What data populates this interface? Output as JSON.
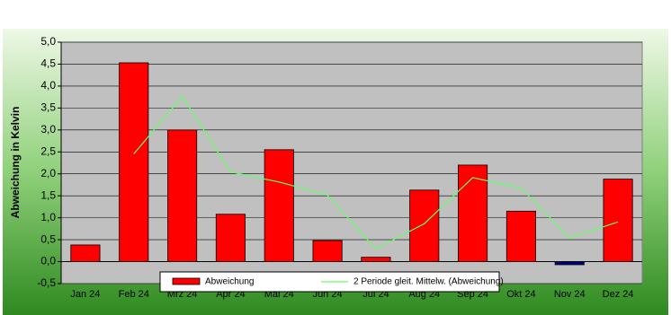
{
  "chart_data": {
    "type": "bar",
    "y_label": "Abweichung in Kelvin",
    "categories": [
      "Jan 24",
      "Feb 24",
      "Mrz 24",
      "Apr 24",
      "Mai 24",
      "Jun 24",
      "Jul 24",
      "Aug 24",
      "Sep 24",
      "Okt 24",
      "Nov 24",
      "Dez 24"
    ],
    "series": [
      {
        "name": "Abweichung",
        "type": "bar",
        "color": "#ff0000",
        "negative_color": "#000080",
        "values": [
          0.38,
          4.53,
          3.0,
          1.08,
          2.55,
          0.48,
          0.1,
          1.63,
          2.2,
          1.15,
          -0.07,
          1.88
        ]
      },
      {
        "name": "2 Periode gleit. Mittelw. (Abweichung)",
        "type": "line",
        "color": "#66ff66",
        "values": [
          null,
          2.455,
          3.765,
          2.04,
          1.815,
          1.515,
          0.29,
          0.865,
          1.915,
          1.675,
          0.54,
          0.905
        ]
      }
    ],
    "ylim": [
      -0.5,
      5.0
    ],
    "yticks": [
      {
        "value": -0.5,
        "label": "-0,5"
      },
      {
        "value": 0,
        "label": "0,0"
      },
      {
        "value": 0.5,
        "label": "0,5"
      },
      {
        "value": 1.0,
        "label": "1,0"
      },
      {
        "value": 1.5,
        "label": "1,5"
      },
      {
        "value": 2.0,
        "label": "2,0"
      },
      {
        "value": 2.5,
        "label": "2,5"
      },
      {
        "value": 3.0,
        "label": "3,0"
      },
      {
        "value": 3.5,
        "label": "3,5"
      },
      {
        "value": 4.0,
        "label": "4,0"
      },
      {
        "value": 4.5,
        "label": "4,5"
      },
      {
        "value": 5.0,
        "label": "5,0"
      }
    ],
    "grid": true
  }
}
